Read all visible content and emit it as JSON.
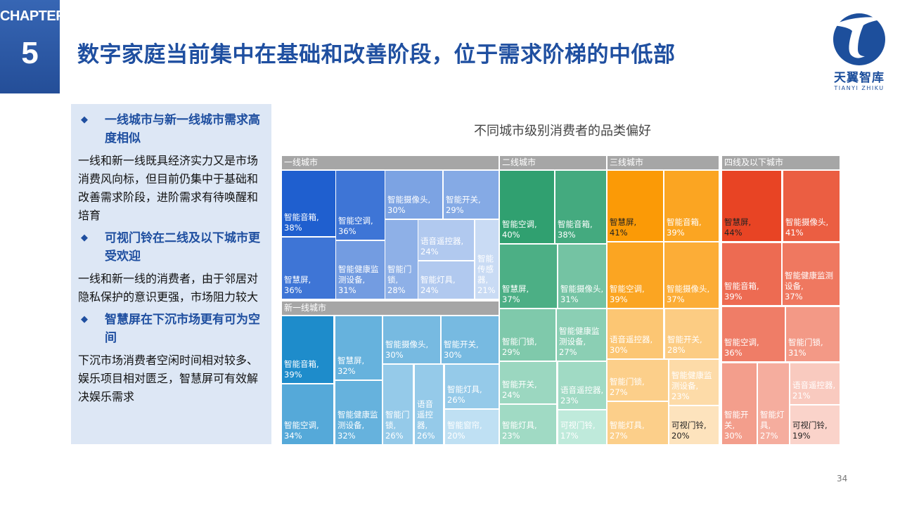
{
  "header": {
    "chapter_label": "CHAPTER",
    "chapter_number": "5",
    "title": "数字家庭当前集中在基础和改善阶段，位于需求阶梯的中低部"
  },
  "logo": {
    "name_cn": "天翼智库",
    "name_en": "TIANYI ZHIKU"
  },
  "sidebar": {
    "bullets": [
      {
        "icon": "diamond-bullet",
        "heading": "一线城市与新一线城市需求高度相似",
        "body": "一线和新一线既具经济实力又是市场消费风向标，但目前仍集中于基础和改善需求阶段，进阶需求有待唤醒和培育"
      },
      {
        "icon": "diamond-bullet",
        "heading": "可视门铃在二线及以下城市更受欢迎",
        "body": "一线和新一线的消费者，由于邻居对隐私保护的意识更强，市场阻力较大"
      },
      {
        "icon": "diamond-bullet",
        "heading": "智慧屏在下沉市场更有可为空间",
        "body": "下沉市场消费者空闲时间相对较多、娱乐项目相对匮乏，智慧屏可有效解决娱乐需求"
      }
    ]
  },
  "page_number": "34",
  "chart_data": {
    "type": "treemap",
    "title": "不同城市级别消费者的品类偏好",
    "unit": "%",
    "groups": [
      {
        "name": "一线城市",
        "color_dark": "#1f5fcf",
        "color_light": "#c9dbf4",
        "items": [
          {
            "label": "智能音箱",
            "value": 38
          },
          {
            "label": "智慧屏",
            "value": 36
          },
          {
            "label": "智能空调",
            "value": 36
          },
          {
            "label": "智能健康监测设备",
            "value": 31
          },
          {
            "label": "智能摄像头",
            "value": 30
          },
          {
            "label": "智能开关",
            "value": 29
          },
          {
            "label": "智能门锁",
            "value": 28
          },
          {
            "label": "语音遥控器",
            "value": 24
          },
          {
            "label": "智能灯具",
            "value": 24
          },
          {
            "label": "智能传感器",
            "value": 21
          }
        ]
      },
      {
        "name": "新一线城市",
        "color_dark": "#1e8ccb",
        "color_light": "#bfe0f3",
        "items": [
          {
            "label": "智能音箱",
            "value": 39
          },
          {
            "label": "智能空调",
            "value": 34
          },
          {
            "label": "智慧屏",
            "value": 32
          },
          {
            "label": "智能健康监测设备",
            "value": 32
          },
          {
            "label": "智能摄像头",
            "value": 30
          },
          {
            "label": "智能开关",
            "value": 30
          },
          {
            "label": "智能门锁",
            "value": 26
          },
          {
            "label": "语音遥控器",
            "value": 26
          },
          {
            "label": "智能灯具",
            "value": 26
          },
          {
            "label": "智能窗帘",
            "value": 20
          }
        ]
      },
      {
        "name": "二线城市",
        "color_dark": "#30a070",
        "color_light": "#bfeadb",
        "items": [
          {
            "label": "智能空调",
            "value": 40
          },
          {
            "label": "智能音箱",
            "value": 38
          },
          {
            "label": "智慧屏",
            "value": 37
          },
          {
            "label": "智能摄像头",
            "value": 31
          },
          {
            "label": "智能门锁",
            "value": 29
          },
          {
            "label": "智能健康监测设备",
            "value": 27
          },
          {
            "label": "智能开关",
            "value": 24
          },
          {
            "label": "语音遥控器",
            "value": 23
          },
          {
            "label": "智能灯具",
            "value": 23
          },
          {
            "label": "可视门铃",
            "value": 17
          }
        ]
      },
      {
        "name": "三线城市",
        "color_dark": "#fb9a06",
        "color_light": "#fde3bd",
        "items": [
          {
            "label": "智慧屏",
            "value": 41
          },
          {
            "label": "智能音箱",
            "value": 39
          },
          {
            "label": "智能空调",
            "value": 39
          },
          {
            "label": "智能摄像头",
            "value": 37
          },
          {
            "label": "语音遥控器",
            "value": 30
          },
          {
            "label": "智能开关",
            "value": 28
          },
          {
            "label": "智能门锁",
            "value": 27
          },
          {
            "label": "智能健康监测设备",
            "value": 23
          },
          {
            "label": "智能灯具",
            "value": 27
          },
          {
            "label": "可视门铃",
            "value": 20
          }
        ]
      },
      {
        "name": "四线及以下城市",
        "color_dark": "#e84424",
        "color_light": "#fad3ca",
        "items": [
          {
            "label": "智慧屏",
            "value": 44
          },
          {
            "label": "智能摄像头",
            "value": 41
          },
          {
            "label": "智能音箱",
            "value": 39
          },
          {
            "label": "智能健康监测设备",
            "value": 37
          },
          {
            "label": "智能空调",
            "value": 36
          },
          {
            "label": "智能门锁",
            "value": 31
          },
          {
            "label": "智能开关",
            "value": 30
          },
          {
            "label": "智能灯具",
            "value": 27
          },
          {
            "label": "语音遥控器",
            "value": 21
          },
          {
            "label": "可视门铃",
            "value": 19
          }
        ]
      }
    ]
  }
}
